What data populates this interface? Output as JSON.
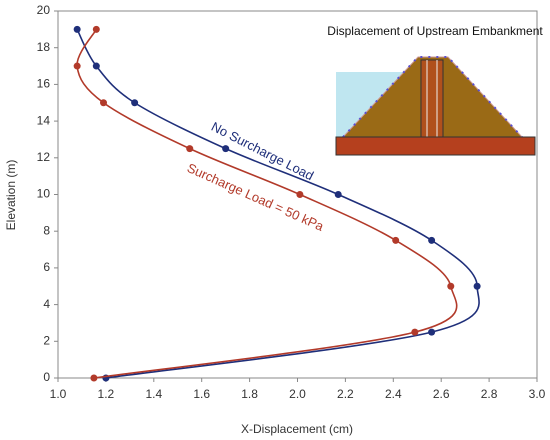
{
  "chart_data": {
    "type": "line",
    "inset_title": "Displacement of Upstream Embankment",
    "x_label": "X-Displacement (cm)",
    "y_label": "Elevation (m)",
    "xlim": [
      1.0,
      3.0
    ],
    "xticks": [
      {
        "value": 1,
        "label": "1.0"
      },
      {
        "value": 1.2,
        "label": "1.2"
      },
      {
        "value": 1.4,
        "label": "1.4"
      },
      {
        "value": 1.6,
        "label": "1.6"
      },
      {
        "value": 1.8,
        "label": "1.8"
      },
      {
        "value": 2,
        "label": "2.0"
      },
      {
        "value": 2.2,
        "label": "2.2"
      },
      {
        "value": 2.4,
        "label": "2.4"
      },
      {
        "value": 2.6,
        "label": "2.6"
      },
      {
        "value": 2.8,
        "label": "2.8"
      },
      {
        "value": 3,
        "label": "3.0"
      }
    ],
    "ylim": [
      0,
      20
    ],
    "yticks": [
      0,
      2,
      4,
      6,
      8,
      10,
      12,
      14,
      16,
      18,
      20
    ],
    "series": [
      {
        "name": "No Surcharge Load",
        "color": "#1f2f7a",
        "x": [
          1.08,
          1.16,
          1.32,
          1.7,
          2.17,
          2.56,
          2.75,
          2.56,
          1.2
        ],
        "values": [
          19,
          17,
          15,
          12.5,
          10,
          7.5,
          5,
          2.5,
          0
        ]
      },
      {
        "name": "Surcharge Load = 50 kPa",
        "color": "#b23a2a",
        "x": [
          1.16,
          1.08,
          1.19,
          1.55,
          2.01,
          2.41,
          2.64,
          2.49,
          1.15
        ],
        "values": [
          19,
          17,
          15,
          12.5,
          10,
          7.5,
          5,
          2.5,
          0
        ]
      }
    ]
  }
}
